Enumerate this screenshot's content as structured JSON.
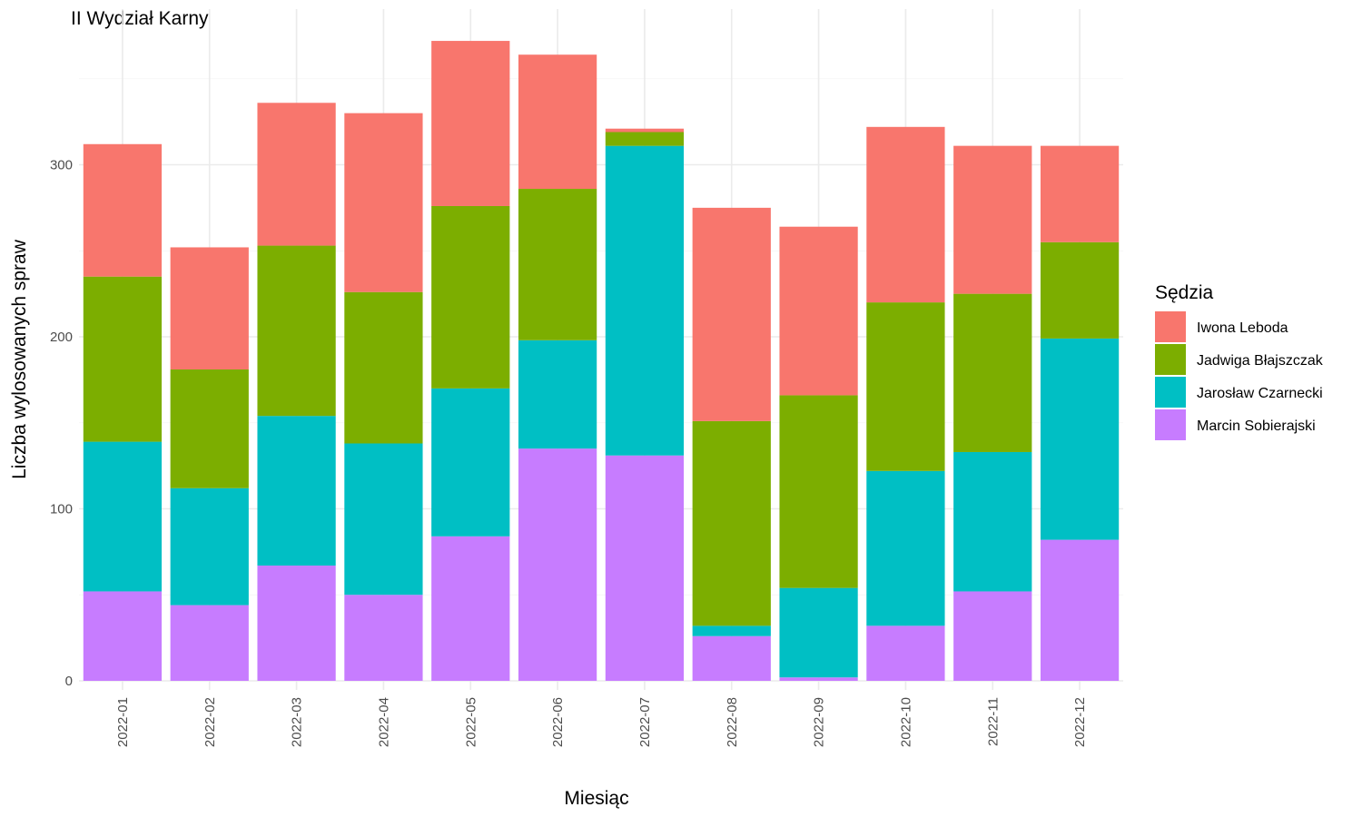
{
  "chart_data": {
    "type": "bar",
    "stacked": true,
    "title": "II Wydział Karny",
    "xlabel": "Miesiąc",
    "ylabel": "Liczba wylosowanych spraw",
    "ylim": [
      0,
      390
    ],
    "yticks": [
      0,
      100,
      200,
      300
    ],
    "grid": true,
    "legend": {
      "title": "Sędzia",
      "position": "right"
    },
    "categories": [
      "2022-01",
      "2022-02",
      "2022-03",
      "2022-04",
      "2022-05",
      "2022-06",
      "2022-07",
      "2022-08",
      "2022-09",
      "2022-10",
      "2022-11",
      "2022-12"
    ],
    "series": [
      {
        "name": "Marcin Sobierajski",
        "color": "#C77CFF",
        "values": [
          52,
          44,
          67,
          50,
          84,
          135,
          131,
          26,
          2,
          32,
          52,
          82
        ]
      },
      {
        "name": "Jarosław Czarnecki",
        "color": "#00BFC4",
        "values": [
          87,
          68,
          87,
          88,
          86,
          63,
          180,
          6,
          52,
          90,
          81,
          117
        ]
      },
      {
        "name": "Jadwiga Błajszczak",
        "color": "#7CAE00",
        "values": [
          96,
          69,
          99,
          88,
          106,
          88,
          8,
          119,
          112,
          98,
          92,
          56
        ]
      },
      {
        "name": "Iwona Leboda",
        "color": "#F8766D",
        "values": [
          77,
          71,
          83,
          104,
          96,
          78,
          2,
          124,
          98,
          102,
          86,
          56
        ]
      }
    ],
    "legend_order": [
      "Iwona Leboda",
      "Jadwiga Błajszczak",
      "Jarosław Czarnecki",
      "Marcin Sobierajski"
    ]
  }
}
